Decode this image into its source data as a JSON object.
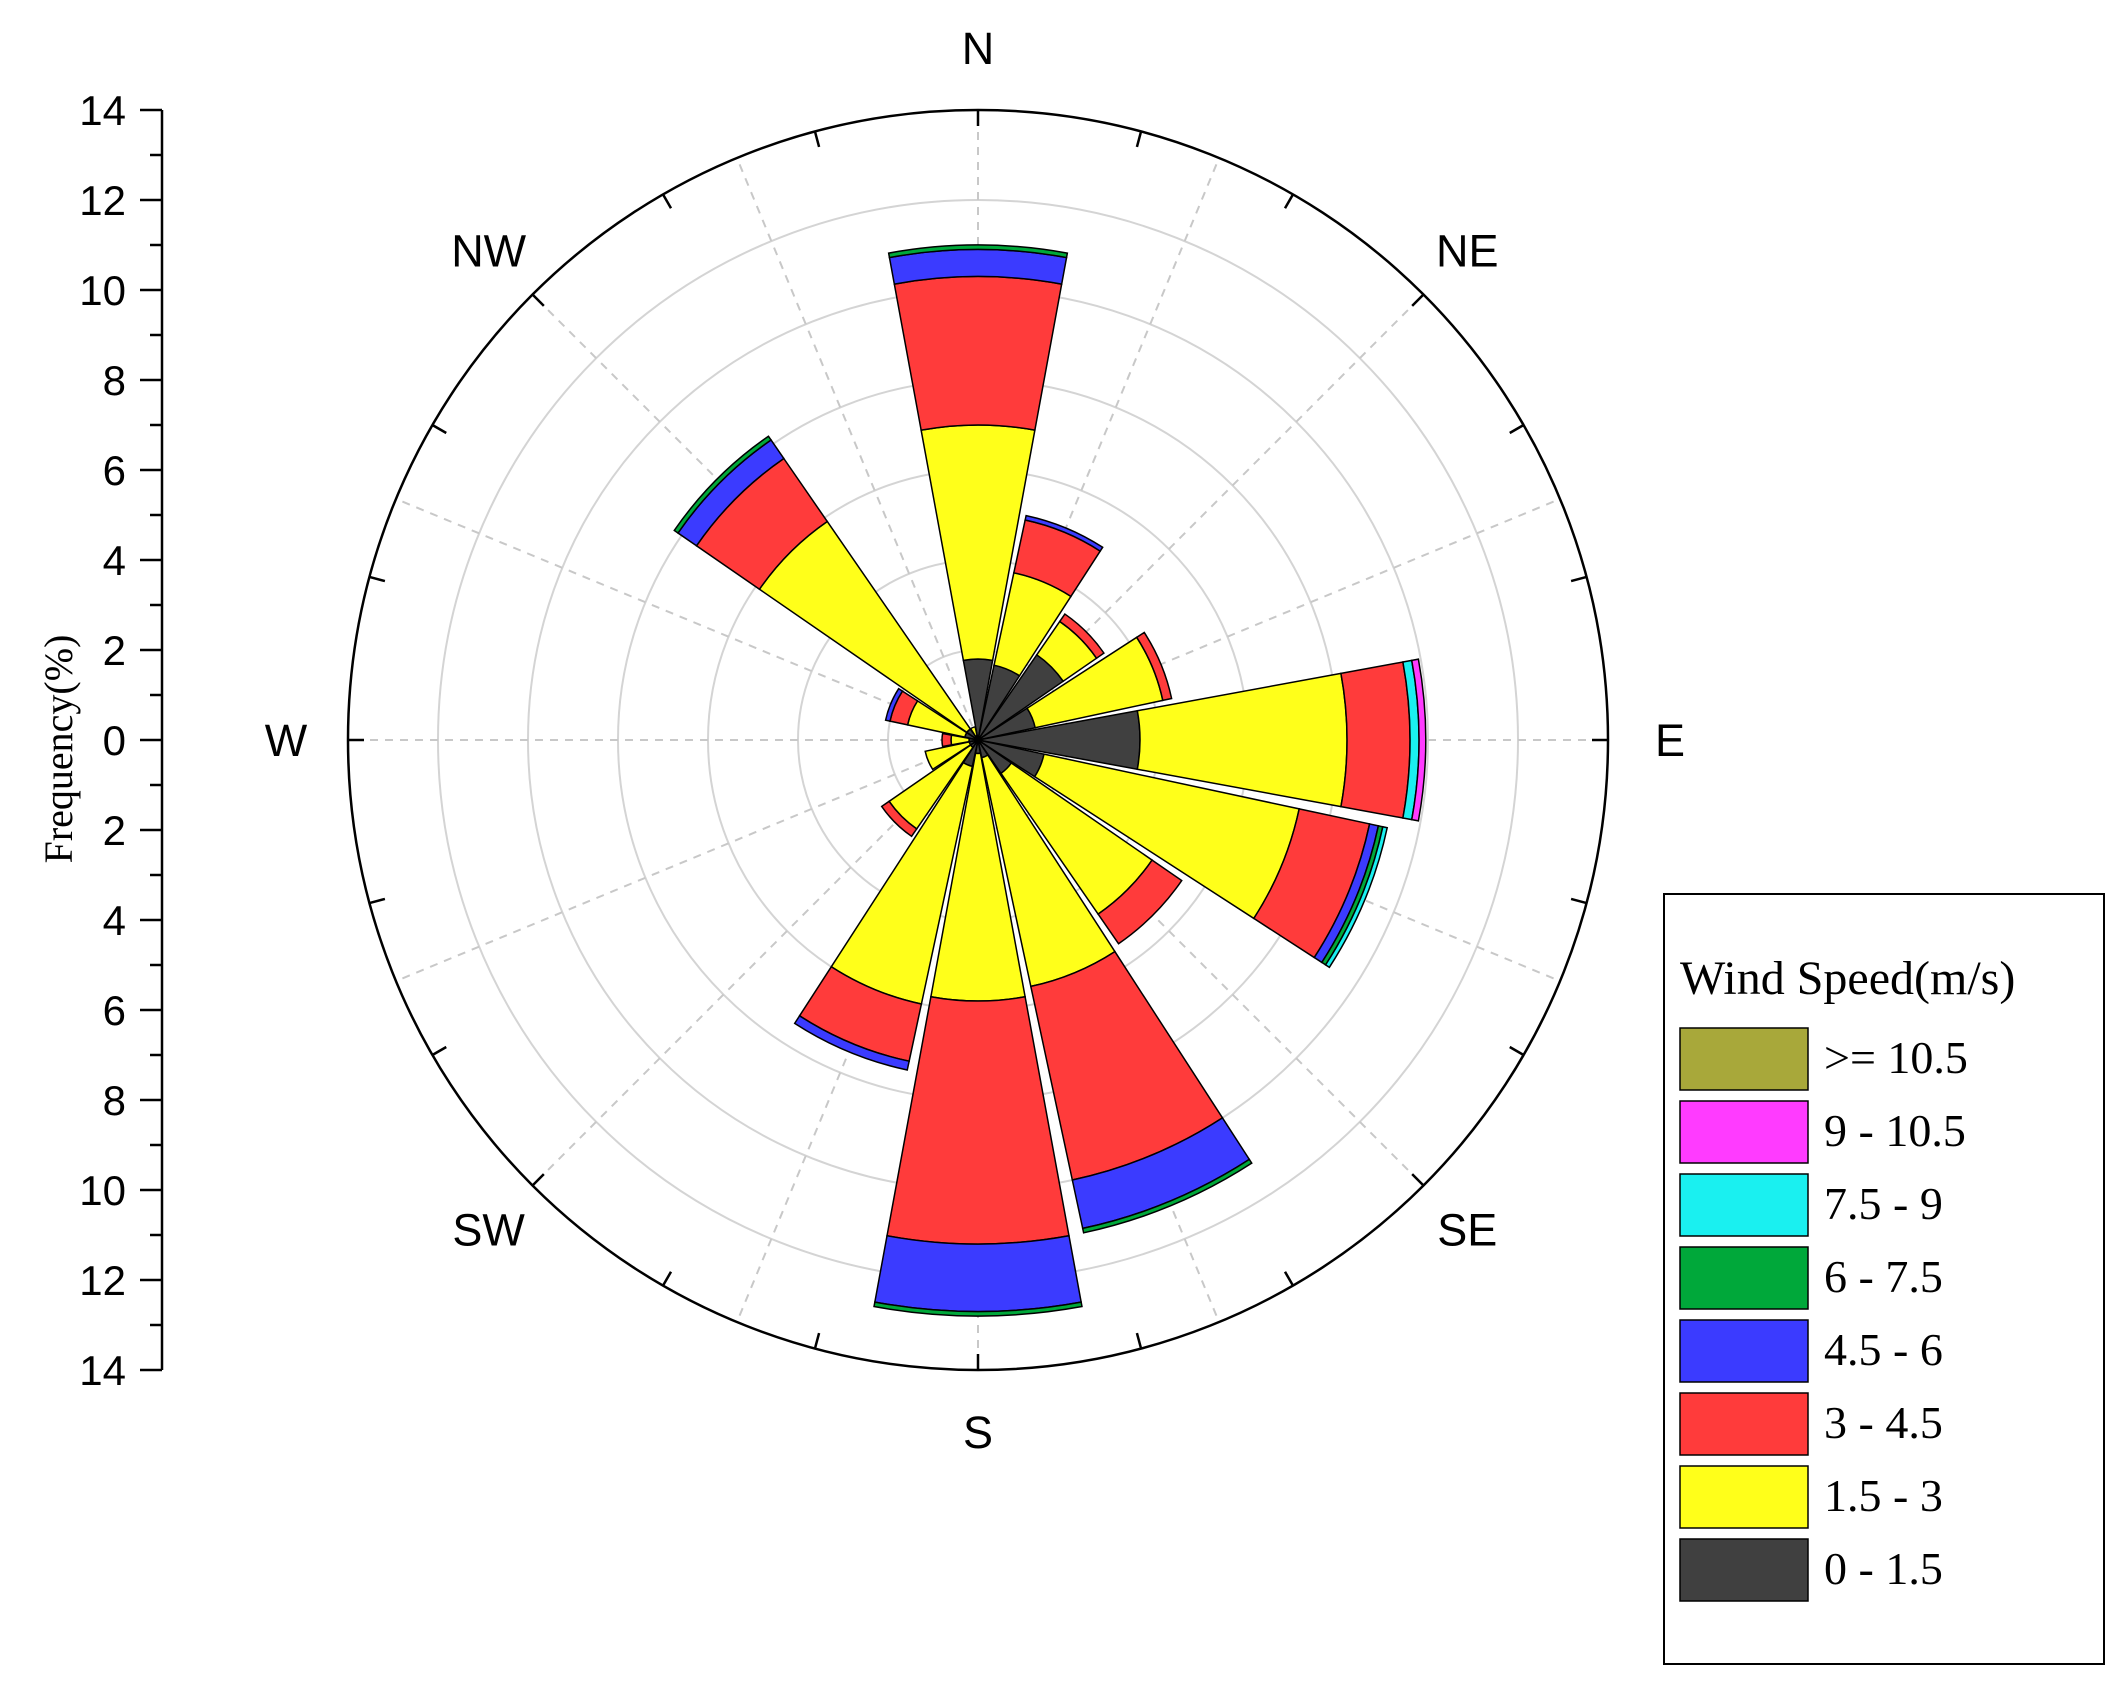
{
  "chart_data": {
    "type": "windrose",
    "ylabel": "Frequency(%)",
    "ylim": [
      0,
      14
    ],
    "y_ticks": [
      "14",
      "12",
      "10",
      "8",
      "6",
      "4",
      "2",
      "0",
      "2",
      "4",
      "6",
      "8",
      "10",
      "12",
      "14"
    ],
    "grid": true,
    "directions": [
      "N",
      "NNE",
      "NE",
      "ENE",
      "E",
      "ESE",
      "SE",
      "SSE",
      "S",
      "SSW",
      "SW",
      "WSW",
      "W",
      "WNW",
      "NW",
      "NNW"
    ],
    "direction_labels": [
      "N",
      "NE",
      "E",
      "SE",
      "S",
      "SW",
      "W",
      "NW"
    ],
    "legend": {
      "title": "Wind Speed(m/s)",
      "position": "bottom-right"
    },
    "series": [
      {
        "name": "0 - 1.5",
        "color": "#404040",
        "values": [
          1.8,
          1.7,
          2.3,
          1.3,
          3.6,
          1.5,
          0.9,
          0.4,
          0.3,
          0.6,
          0.2,
          0.2,
          0.2,
          0.3,
          0.3,
          0.1
        ]
      },
      {
        "name": "1.5 - 3",
        "color": "#ffff1a",
        "values": [
          5.2,
          2.1,
          0.9,
          2.9,
          4.6,
          5.8,
          3.8,
          5.2,
          5.5,
          5.4,
          2.2,
          1.0,
          0.4,
          1.3,
          5.6,
          0.2
        ]
      },
      {
        "name": "3 - 4.5",
        "color": "#ff3b3b",
        "values": [
          3.3,
          1.2,
          0.2,
          0.2,
          1.4,
          1.6,
          0.8,
          4.4,
          5.4,
          1.3,
          0.2,
          0.0,
          0.2,
          0.4,
          1.7,
          0.0
        ]
      },
      {
        "name": "4.5 - 6",
        "color": "#3b3bff",
        "values": [
          0.6,
          0.1,
          0.0,
          0.0,
          0.0,
          0.2,
          0.0,
          1.1,
          1.5,
          0.2,
          0.0,
          0.0,
          0.0,
          0.1,
          0.5,
          0.0
        ]
      },
      {
        "name": "6 - 7.5",
        "color": "#00a83a",
        "values": [
          0.1,
          0.0,
          0.0,
          0.0,
          0.0,
          0.1,
          0.0,
          0.1,
          0.1,
          0.0,
          0.0,
          0.0,
          0.0,
          0.0,
          0.1,
          0.0
        ]
      },
      {
        "name": "7.5 - 9",
        "color": "#1af0f0",
        "values": [
          0,
          0,
          0,
          0,
          0.2,
          0.1,
          0,
          0,
          0,
          0,
          0,
          0,
          0,
          0,
          0,
          0
        ]
      },
      {
        "name": "9 - 10.5",
        "color": "#ff3bff",
        "values": [
          0,
          0,
          0,
          0,
          0.15,
          0,
          0,
          0,
          0,
          0,
          0,
          0,
          0,
          0,
          0,
          0
        ]
      },
      {
        "name": ">= 10.5",
        "color": "#a8a83a",
        "values": [
          0,
          0,
          0,
          0,
          0,
          0,
          0,
          0,
          0,
          0,
          0,
          0,
          0,
          0,
          0,
          0
        ]
      }
    ]
  }
}
